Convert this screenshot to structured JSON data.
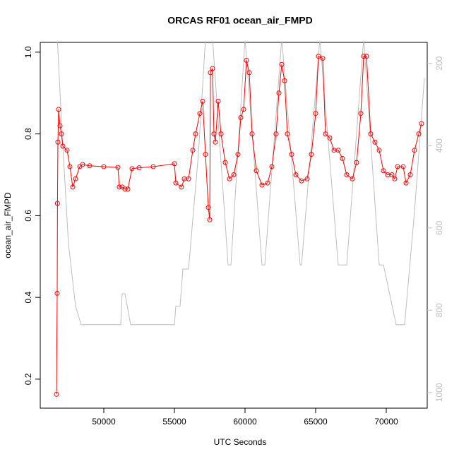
{
  "chart_data": {
    "type": "line",
    "title": "ORCAS RF01 ocean_air_FMPD",
    "xlabel": "UTC Seconds",
    "ylabel": "ocean_air_FMPD",
    "xlim": [
      45500,
      72900
    ],
    "xticks": [
      50000,
      55000,
      60000,
      65000,
      70000
    ],
    "ylim": [
      0.129,
      1.024
    ],
    "yticks": [
      0.2,
      0.4,
      0.6,
      0.8,
      {
        "value": 1,
        "label": "1.0"
      }
    ],
    "y2lim": [
      1038,
      149
    ],
    "y2ticks": [
      200,
      400,
      600,
      800,
      1000
    ],
    "series": [
      {
        "color": "#bebebe",
        "axis": "y2",
        "markers": false,
        "x": [
          46650,
          47000,
          47500,
          48000,
          48400,
          51200,
          51300,
          51500,
          51900,
          55000,
          55100,
          55400,
          55600,
          56000,
          56700,
          57200,
          57700,
          58800,
          59000,
          60000,
          61200,
          61400,
          62600,
          63900,
          64000,
          65300,
          66600,
          67200,
          68400,
          69500,
          69800,
          70700,
          71300,
          72000,
          72700
        ],
        "values": [
          100,
          340,
          640,
          790,
          835,
          835,
          760,
          760,
          835,
          835,
          790,
          790,
          700,
          700,
          420,
          140,
          140,
          690,
          690,
          140,
          690,
          690,
          140,
          690,
          690,
          140,
          690,
          690,
          140,
          690,
          690,
          835,
          835,
          560,
          235
        ]
      },
      {
        "color": "#ff0000",
        "markers": true,
        "x": [
          46650,
          46700,
          46720,
          46750,
          46800,
          46900,
          47000,
          47100,
          47400,
          47600,
          47800,
          48000,
          48300,
          48500,
          49000,
          50000,
          51000,
          51100,
          51300,
          51500,
          51700,
          52000,
          52500,
          53500,
          55000,
          55100,
          55500,
          55700,
          56000,
          56300,
          56500,
          56800,
          57000,
          57200,
          57400,
          57500,
          57550,
          57700,
          57800,
          57900,
          58100,
          58300,
          58600,
          58900,
          59200,
          59500,
          59700,
          59900,
          60100,
          60300,
          60500,
          60800,
          61200,
          61600,
          61900,
          62200,
          62400,
          62600,
          62800,
          63000,
          63300,
          63600,
          64000,
          64400,
          64700,
          65000,
          65200,
          65500,
          65700,
          66000,
          66300,
          66600,
          66900,
          67200,
          67600,
          67900,
          68200,
          68400,
          68600,
          68900,
          69200,
          69500,
          69800,
          70100,
          70400,
          70600,
          70800,
          71200,
          71400,
          71700,
          72000,
          72300,
          72500
        ],
        "values": [
          0.163,
          0.41,
          0.63,
          0.78,
          0.86,
          0.82,
          0.8,
          0.77,
          0.76,
          0.72,
          0.67,
          0.69,
          0.72,
          0.725,
          0.722,
          0.72,
          0.718,
          0.67,
          0.67,
          0.665,
          0.665,
          0.715,
          0.717,
          0.72,
          0.727,
          0.68,
          0.67,
          0.69,
          0.69,
          0.76,
          0.8,
          0.85,
          0.88,
          0.75,
          0.62,
          0.59,
          0.95,
          0.96,
          0.8,
          0.78,
          0.88,
          0.8,
          0.73,
          0.69,
          0.7,
          0.75,
          0.84,
          0.86,
          0.98,
          0.95,
          0.8,
          0.71,
          0.675,
          0.68,
          0.72,
          0.8,
          0.9,
          0.97,
          0.93,
          0.8,
          0.75,
          0.7,
          0.685,
          0.69,
          0.75,
          0.85,
          0.99,
          0.985,
          0.8,
          0.79,
          0.76,
          0.76,
          0.74,
          0.7,
          0.69,
          0.73,
          0.85,
          0.99,
          0.99,
          0.8,
          0.78,
          0.76,
          0.71,
          0.7,
          0.7,
          0.69,
          0.72,
          0.72,
          0.68,
          0.7,
          0.76,
          0.8,
          0.825
        ]
      }
    ]
  }
}
